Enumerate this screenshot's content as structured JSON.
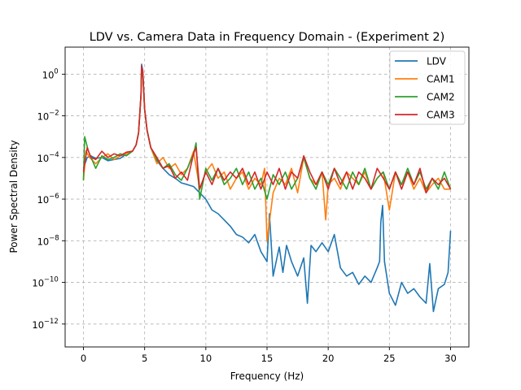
{
  "chart_data": {
    "type": "line",
    "title": "LDV vs. Camera Data in Frequency Domain - (Experiment 2)",
    "xlabel": "Frequency (Hz)",
    "ylabel": "Power Spectral Density",
    "xlim": [
      -1.5,
      31.5
    ],
    "ylim_log10": [
      -13.1,
      1.3
    ],
    "yscale": "log",
    "grid": true,
    "legend_position": "top-right",
    "x_ticks": [
      0,
      5,
      10,
      15,
      20,
      25,
      30
    ],
    "x_tick_labels": [
      "0",
      "5",
      "10",
      "15",
      "20",
      "25",
      "30"
    ],
    "y_ticks_log10": [
      0,
      -2,
      -4,
      -6,
      -8,
      -10,
      -12
    ],
    "y_tick_base": "10",
    "y_tick_exponents": [
      "0",
      "−2",
      "−4",
      "−6",
      "−8",
      "−10",
      "−12"
    ],
    "series": [
      {
        "name": "LDV",
        "color": "#1f77b4",
        "x": [
          0,
          0.3,
          0.6,
          1,
          1.5,
          2,
          2.5,
          3,
          3.5,
          4,
          4.3,
          4.5,
          4.7,
          4.75,
          4.85,
          5,
          5.2,
          5.5,
          6,
          6.5,
          7,
          7.5,
          8,
          8.5,
          9,
          9.5,
          10,
          10.5,
          11,
          11.5,
          12,
          12.5,
          13,
          13.5,
          14,
          14.5,
          15,
          15.2,
          15.5,
          16,
          16.3,
          16.6,
          17,
          17.5,
          18,
          18.3,
          18.6,
          19,
          19.5,
          20,
          20.5,
          21,
          21.5,
          22,
          22.5,
          23,
          23.5,
          24,
          24.2,
          24.3,
          24.45,
          24.6,
          25,
          25.5,
          26,
          26.5,
          27,
          27.5,
          28,
          28.3,
          28.6,
          29,
          29.5,
          29.8,
          30
        ],
        "y": [
          3e-05,
          0.0001,
          0.00012,
          9e-05,
          0.0001,
          7e-05,
          8e-05,
          9e-05,
          0.00015,
          0.0002,
          0.0004,
          0.0015,
          0.1,
          3.0,
          1.5,
          0.02,
          0.002,
          0.0003,
          7e-05,
          3e-05,
          1.5e-05,
          1e-05,
          6e-06,
          5e-06,
          4e-06,
          2e-06,
          1e-06,
          3e-07,
          2e-07,
          1e-07,
          5e-08,
          2e-08,
          1.5e-08,
          8e-09,
          2e-08,
          3e-09,
          1e-09,
          2e-07,
          2e-10,
          5e-09,
          3e-10,
          6e-09,
          1e-09,
          2e-10,
          1.5e-09,
          1e-11,
          6e-09,
          3e-09,
          8e-09,
          3e-09,
          2e-08,
          5e-10,
          2e-10,
          3e-10,
          8e-11,
          2e-10,
          1e-10,
          5e-10,
          1e-09,
          8e-08,
          5e-07,
          1e-09,
          3e-11,
          8e-12,
          1e-10,
          3e-11,
          5e-11,
          2e-11,
          1e-11,
          8e-10,
          4e-12,
          5e-11,
          8e-11,
          3e-10,
          3e-08
        ]
      },
      {
        "name": "CAM1",
        "color": "#ff7f0e",
        "x": [
          0,
          0.2,
          0.5,
          1,
          1.5,
          2,
          2.5,
          3,
          3.5,
          4,
          4.3,
          4.5,
          4.7,
          4.75,
          4.85,
          5,
          5.2,
          5.5,
          6,
          6.5,
          7,
          7.5,
          8,
          8.5,
          9,
          9.5,
          10,
          10.5,
          11,
          11.5,
          12,
          12.5,
          13,
          13.5,
          14,
          14.5,
          14.8,
          15,
          15.5,
          16,
          16.5,
          17,
          17.5,
          18,
          18.5,
          19,
          19.5,
          19.8,
          20,
          20.5,
          21,
          21.5,
          22,
          22.5,
          23,
          23.5,
          24,
          24.5,
          25,
          25.5,
          26,
          26.5,
          27,
          27.5,
          28,
          28.5,
          29,
          29.5,
          30
        ],
        "y": [
          8e-06,
          0.0002,
          0.0001,
          5e-05,
          0.0001,
          0.00015,
          8e-05,
          0.00012,
          0.00015,
          0.0002,
          0.0004,
          0.0015,
          0.1,
          2.0,
          1.0,
          0.02,
          0.002,
          0.0003,
          5e-05,
          0.0001,
          3e-05,
          5e-05,
          1.5e-05,
          3e-05,
          0.0002,
          3e-06,
          2e-05,
          5e-05,
          1e-05,
          2e-05,
          3e-06,
          1e-05,
          2e-05,
          3e-06,
          1e-05,
          5e-06,
          3e-05,
          1e-08,
          2e-06,
          1e-05,
          5e-06,
          3e-05,
          2e-06,
          0.0001,
          1e-05,
          5e-06,
          2e-05,
          1e-07,
          5e-06,
          1e-05,
          3e-06,
          2e-05,
          1e-05,
          5e-06,
          2e-05,
          3e-06,
          1e-05,
          2e-05,
          3e-07,
          2e-05,
          5e-06,
          2e-05,
          3e-06,
          1e-05,
          2e-06,
          5e-06,
          1e-05,
          3e-06,
          3e-06
        ]
      },
      {
        "name": "CAM2",
        "color": "#2ca02c",
        "x": [
          0,
          0.1,
          0.4,
          1,
          1.5,
          2,
          2.5,
          3,
          3.5,
          4,
          4.3,
          4.5,
          4.7,
          4.75,
          4.85,
          5,
          5.2,
          5.5,
          6,
          6.5,
          7,
          7.5,
          8,
          8.5,
          9,
          9.2,
          9.5,
          10,
          10.5,
          11,
          11.5,
          12,
          12.5,
          13,
          13.5,
          14,
          14.5,
          15,
          15.5,
          16,
          16.5,
          17,
          17.5,
          18,
          18.5,
          19,
          19.5,
          20,
          20.5,
          21,
          21.5,
          22,
          22.5,
          23,
          23.5,
          24,
          24.5,
          25,
          25.5,
          26,
          26.5,
          27,
          27.5,
          28,
          28.5,
          29,
          29.5,
          30
        ],
        "y": [
          8e-06,
          0.001,
          0.0002,
          3e-05,
          0.00012,
          8e-05,
          0.0001,
          0.00015,
          0.00012,
          0.0002,
          0.0004,
          0.0015,
          0.1,
          2.0,
          1.0,
          0.02,
          0.002,
          0.0003,
          8e-05,
          3e-05,
          5e-05,
          1.5e-05,
          8e-06,
          3e-05,
          0.00015,
          0.0005,
          1e-06,
          3e-05,
          8e-06,
          3e-05,
          5e-06,
          1e-05,
          3e-05,
          5e-06,
          2e-05,
          3e-06,
          1e-05,
          1e-06,
          1.5e-05,
          5e-06,
          2e-05,
          3e-06,
          1e-05,
          0.0001,
          1e-05,
          3e-06,
          2e-05,
          5e-06,
          3e-05,
          1e-05,
          3e-06,
          2e-05,
          5e-06,
          3e-05,
          3e-06,
          1e-05,
          2e-05,
          3e-06,
          2e-05,
          5e-06,
          3e-05,
          5e-06,
          2e-05,
          3e-06,
          1e-05,
          3e-06,
          2e-05,
          3e-06
        ]
      },
      {
        "name": "CAM3",
        "color": "#d62728",
        "x": [
          0,
          0.3,
          0.6,
          1,
          1.5,
          2,
          2.5,
          3,
          3.5,
          4,
          4.3,
          4.5,
          4.7,
          4.75,
          4.85,
          5,
          5.2,
          5.5,
          6,
          6.5,
          7,
          7.5,
          8,
          8.5,
          9,
          9.2,
          9.5,
          10,
          10.5,
          11,
          11.5,
          12,
          12.5,
          13,
          13.5,
          14,
          14.5,
          15,
          15.5,
          16,
          16.5,
          17,
          17.5,
          18,
          18.5,
          19,
          19.5,
          20,
          20.5,
          21,
          21.5,
          22,
          22.5,
          23,
          23.5,
          24,
          24.5,
          25,
          25.5,
          26,
          26.5,
          27,
          27.5,
          28,
          28.5,
          29,
          29.5,
          30
        ],
        "y": [
          2e-05,
          0.0003,
          0.0001,
          8e-05,
          0.0002,
          0.0001,
          0.00015,
          0.00012,
          0.00018,
          0.0002,
          0.0004,
          0.0015,
          0.1,
          2.5,
          1.2,
          0.02,
          0.002,
          0.0003,
          0.0001,
          3e-05,
          4e-05,
          1e-05,
          2e-05,
          8e-06,
          0.00015,
          0.0003,
          3e-06,
          2e-05,
          5e-06,
          3e-05,
          8e-06,
          2e-05,
          1e-05,
          3e-05,
          5e-06,
          2e-05,
          3e-06,
          2e-05,
          5e-06,
          3e-05,
          3e-06,
          2e-05,
          1e-05,
          0.00012,
          2e-05,
          5e-06,
          2e-05,
          3e-06,
          3e-05,
          5e-06,
          2e-05,
          3e-06,
          2e-05,
          1e-05,
          3e-06,
          3e-05,
          1e-05,
          3e-06,
          2e-05,
          3e-06,
          2e-05,
          5e-06,
          3e-05,
          2e-06,
          1e-05,
          5e-06,
          1e-05,
          3e-06
        ]
      }
    ]
  }
}
